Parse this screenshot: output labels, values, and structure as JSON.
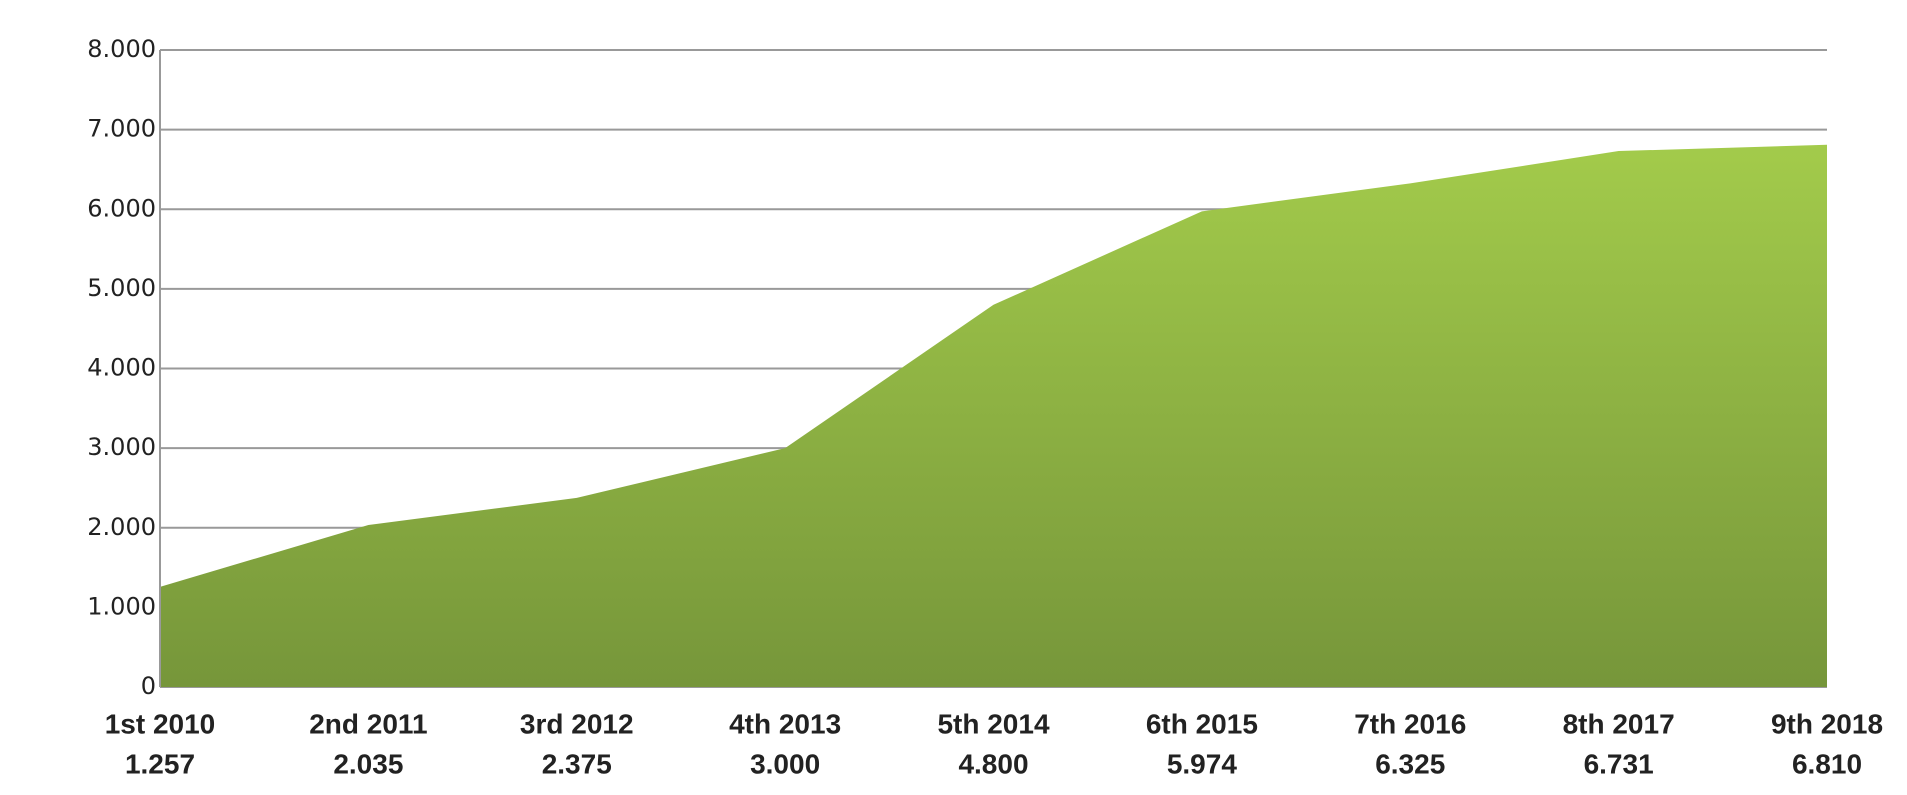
{
  "chart_data": {
    "type": "area",
    "categories": [
      "1st 2010",
      "2nd 2011",
      "3rd 2012",
      "4th 2013",
      "5th 2014",
      "6th 2015",
      "7th 2016",
      "8th 2017",
      "9th 2018"
    ],
    "values": [
      1257,
      2035,
      2375,
      3000,
      4800,
      5974,
      6325,
      6731,
      6810
    ],
    "value_labels": [
      "1.257",
      "2.035",
      "2.375",
      "3.000",
      "4.800",
      "5.974",
      "6.325",
      "6.731",
      "6.810"
    ],
    "color": "#8db345",
    "ylim": [
      0,
      8000
    ],
    "yticks": [
      0,
      {
        "value": 1000,
        "label": "1.000"
      },
      {
        "value": 2000,
        "label": "2.000"
      },
      {
        "value": 3000,
        "label": "3.000"
      },
      {
        "value": 4000,
        "label": "4.000"
      },
      {
        "value": 5000,
        "label": "5.000"
      },
      {
        "value": 6000,
        "label": "6.000"
      },
      {
        "value": 7000,
        "label": "7.000"
      },
      {
        "value": 8000,
        "label": "8.000"
      }
    ],
    "grid": true
  }
}
